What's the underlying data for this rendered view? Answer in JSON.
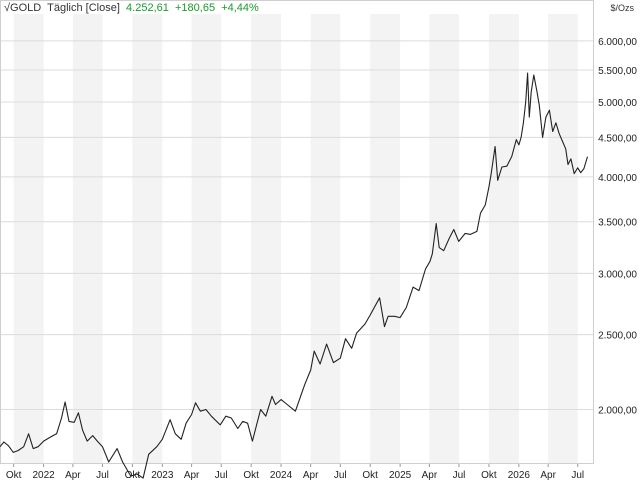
{
  "header": {
    "instrument": "GOLD",
    "interval": "Täglich [Close]",
    "last": "4.252,61",
    "change_abs": "+180,65",
    "change_pct": "+4,44%"
  },
  "colors": {
    "line": "#222222",
    "band": "#f3f3f3",
    "grid": "#dcdcdc",
    "change_positive": "#1a9a2a"
  },
  "chart_data": {
    "type": "line",
    "title": "GOLD",
    "unit": "$/Ozs",
    "yscale": "log",
    "ylim": [
      1700,
      6500
    ],
    "xlim": [
      "2021-08-20",
      "2026-08-20"
    ],
    "yticks": [
      {
        "value": 2000,
        "label": "2.000,00"
      },
      {
        "value": 2500,
        "label": "2.500,00"
      },
      {
        "value": 3000,
        "label": "3.000,00"
      },
      {
        "value": 3500,
        "label": "3.500,00"
      },
      {
        "value": 4000,
        "label": "4.000,00"
      },
      {
        "value": 4500,
        "label": "4.500,00"
      },
      {
        "value": 5000,
        "label": "5.000,00"
      },
      {
        "value": 5500,
        "label": "5.500,00"
      },
      {
        "value": 6000,
        "label": "6.000,00"
      }
    ],
    "xticks": [
      {
        "date": "2021-10-01",
        "label": "Okt"
      },
      {
        "date": "2022-01-01",
        "label": "2022"
      },
      {
        "date": "2022-04-01",
        "label": "Apr"
      },
      {
        "date": "2022-07-01",
        "label": "Jul"
      },
      {
        "date": "2022-10-01",
        "label": "Okt"
      },
      {
        "date": "2023-01-01",
        "label": "2023"
      },
      {
        "date": "2023-04-01",
        "label": "Apr"
      },
      {
        "date": "2023-07-01",
        "label": "Jul"
      },
      {
        "date": "2023-10-01",
        "label": "Okt"
      },
      {
        "date": "2024-01-01",
        "label": "2024"
      },
      {
        "date": "2024-04-01",
        "label": "Apr"
      },
      {
        "date": "2024-07-01",
        "label": "Jul"
      },
      {
        "date": "2024-10-01",
        "label": "Okt"
      },
      {
        "date": "2025-01-01",
        "label": "2025"
      },
      {
        "date": "2025-04-01",
        "label": "Apr"
      },
      {
        "date": "2025-07-01",
        "label": "Jul"
      },
      {
        "date": "2025-10-01",
        "label": "Okt"
      },
      {
        "date": "2026-01-01",
        "label": "2026"
      },
      {
        "date": "2026-04-01",
        "label": "Apr"
      },
      {
        "date": "2026-07-01",
        "label": "Jul"
      }
    ],
    "series": [
      {
        "name": "GOLD",
        "points": [
          [
            "2021-08-20",
            1790
          ],
          [
            "2021-09-01",
            1815
          ],
          [
            "2021-09-15",
            1795
          ],
          [
            "2021-09-30",
            1760
          ],
          [
            "2021-10-15",
            1770
          ],
          [
            "2021-11-01",
            1790
          ],
          [
            "2021-11-16",
            1860
          ],
          [
            "2021-11-30",
            1780
          ],
          [
            "2021-12-15",
            1790
          ],
          [
            "2022-01-01",
            1820
          ],
          [
            "2022-01-25",
            1845
          ],
          [
            "2022-02-10",
            1860
          ],
          [
            "2022-02-25",
            1950
          ],
          [
            "2022-03-08",
            2045
          ],
          [
            "2022-03-20",
            1930
          ],
          [
            "2022-04-05",
            1925
          ],
          [
            "2022-04-18",
            1980
          ],
          [
            "2022-05-01",
            1880
          ],
          [
            "2022-05-15",
            1820
          ],
          [
            "2022-06-01",
            1850
          ],
          [
            "2022-06-15",
            1820
          ],
          [
            "2022-07-01",
            1790
          ],
          [
            "2022-07-20",
            1710
          ],
          [
            "2022-08-15",
            1780
          ],
          [
            "2022-09-01",
            1710
          ],
          [
            "2022-09-26",
            1640
          ],
          [
            "2022-10-15",
            1650
          ],
          [
            "2022-11-03",
            1630
          ],
          [
            "2022-11-20",
            1750
          ],
          [
            "2022-12-15",
            1790
          ],
          [
            "2023-01-01",
            1830
          ],
          [
            "2023-01-25",
            1940
          ],
          [
            "2023-02-10",
            1860
          ],
          [
            "2023-02-28",
            1830
          ],
          [
            "2023-03-15",
            1920
          ],
          [
            "2023-04-01",
            1970
          ],
          [
            "2023-04-13",
            2040
          ],
          [
            "2023-04-28",
            1990
          ],
          [
            "2023-05-15",
            2000
          ],
          [
            "2023-06-01",
            1960
          ],
          [
            "2023-06-28",
            1910
          ],
          [
            "2023-07-15",
            1960
          ],
          [
            "2023-08-01",
            1950
          ],
          [
            "2023-08-21",
            1890
          ],
          [
            "2023-09-05",
            1930
          ],
          [
            "2023-09-20",
            1920
          ],
          [
            "2023-10-05",
            1820
          ],
          [
            "2023-10-30",
            2000
          ],
          [
            "2023-11-15",
            1960
          ],
          [
            "2023-12-04",
            2080
          ],
          [
            "2023-12-15",
            2030
          ],
          [
            "2024-01-01",
            2060
          ],
          [
            "2024-01-20",
            2030
          ],
          [
            "2024-02-14",
            1990
          ],
          [
            "2024-03-01",
            2080
          ],
          [
            "2024-03-15",
            2160
          ],
          [
            "2024-04-01",
            2250
          ],
          [
            "2024-04-12",
            2380
          ],
          [
            "2024-04-30",
            2290
          ],
          [
            "2024-05-20",
            2430
          ],
          [
            "2024-06-10",
            2300
          ],
          [
            "2024-07-01",
            2330
          ],
          [
            "2024-07-17",
            2470
          ],
          [
            "2024-08-05",
            2400
          ],
          [
            "2024-08-20",
            2510
          ],
          [
            "2024-09-15",
            2580
          ],
          [
            "2024-10-01",
            2650
          ],
          [
            "2024-10-30",
            2790
          ],
          [
            "2024-11-14",
            2560
          ],
          [
            "2024-11-25",
            2640
          ],
          [
            "2024-12-15",
            2640
          ],
          [
            "2025-01-01",
            2630
          ],
          [
            "2025-01-20",
            2710
          ],
          [
            "2025-02-10",
            2880
          ],
          [
            "2025-02-28",
            2850
          ],
          [
            "2025-03-20",
            3040
          ],
          [
            "2025-04-03",
            3110
          ],
          [
            "2025-04-10",
            3180
          ],
          [
            "2025-04-22",
            3480
          ],
          [
            "2025-05-01",
            3240
          ],
          [
            "2025-05-15",
            3210
          ],
          [
            "2025-06-01",
            3330
          ],
          [
            "2025-06-15",
            3420
          ],
          [
            "2025-06-30",
            3300
          ],
          [
            "2025-07-20",
            3380
          ],
          [
            "2025-08-05",
            3370
          ],
          [
            "2025-08-25",
            3400
          ],
          [
            "2025-09-05",
            3590
          ],
          [
            "2025-09-20",
            3680
          ],
          [
            "2025-10-01",
            3880
          ],
          [
            "2025-10-08",
            4040
          ],
          [
            "2025-10-20",
            4380
          ],
          [
            "2025-10-28",
            3960
          ],
          [
            "2025-11-10",
            4120
          ],
          [
            "2025-11-25",
            4130
          ],
          [
            "2025-12-10",
            4250
          ],
          [
            "2025-12-24",
            4470
          ],
          [
            "2026-01-01",
            4400
          ],
          [
            "2026-01-08",
            4500
          ],
          [
            "2026-01-15",
            4700
          ],
          [
            "2026-01-22",
            5000
          ],
          [
            "2026-01-28",
            5450
          ],
          [
            "2026-02-02",
            4780
          ],
          [
            "2026-02-08",
            5150
          ],
          [
            "2026-02-16",
            5420
          ],
          [
            "2026-02-25",
            5180
          ],
          [
            "2026-03-05",
            4950
          ],
          [
            "2026-03-15",
            4500
          ],
          [
            "2026-03-25",
            4780
          ],
          [
            "2026-04-05",
            4880
          ],
          [
            "2026-04-15",
            4580
          ],
          [
            "2026-04-25",
            4700
          ],
          [
            "2026-05-05",
            4550
          ],
          [
            "2026-05-15",
            4450
          ],
          [
            "2026-05-25",
            4350
          ],
          [
            "2026-06-01",
            4150
          ],
          [
            "2026-06-10",
            4220
          ],
          [
            "2026-06-20",
            4040
          ],
          [
            "2026-07-01",
            4110
          ],
          [
            "2026-07-10",
            4050
          ],
          [
            "2026-07-20",
            4100
          ],
          [
            "2026-07-31",
            4250
          ]
        ]
      }
    ]
  }
}
